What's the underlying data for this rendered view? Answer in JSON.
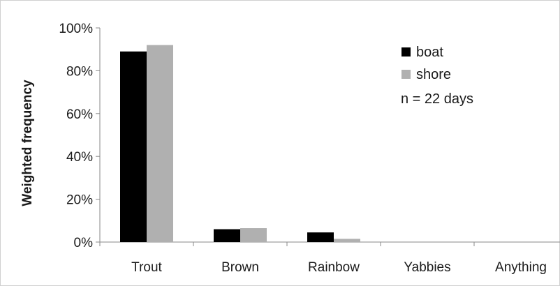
{
  "chart_data": {
    "type": "bar",
    "categories": [
      "Trout",
      "Brown",
      "Rainbow",
      "Yabbies",
      "Anything"
    ],
    "series": [
      {
        "name": "boat",
        "color": "#000000",
        "values": [
          89,
          6,
          4.5,
          0,
          0
        ]
      },
      {
        "name": "shore",
        "color": "#b0b0b0",
        "values": [
          92,
          6.5,
          1.5,
          0,
          0
        ]
      }
    ],
    "ylabel": "Weighted frequency",
    "xlabel": "",
    "ylim": [
      0,
      100
    ],
    "yticks": [
      "0%",
      "20%",
      "40%",
      "60%",
      "80%",
      "100%"
    ],
    "annotation": "n = 22 days",
    "legend_position": "top-right",
    "grid": false
  }
}
